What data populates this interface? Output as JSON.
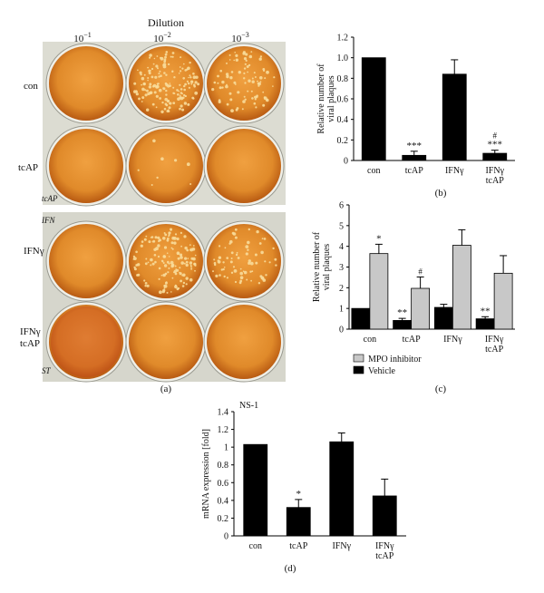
{
  "panel_a": {
    "title": "Dilution",
    "dilutions": [
      {
        "base": "10",
        "exp": "−1"
      },
      {
        "base": "10",
        "exp": "−2"
      },
      {
        "base": "10",
        "exp": "−3"
      }
    ],
    "row_labels": [
      "con",
      "tcAP",
      "IFNγ",
      "IFNγ tcAP"
    ],
    "plate_marks": [
      "tcAP",
      "IFN",
      "ST"
    ],
    "plaque_density": [
      [
        0.0,
        1.0,
        0.55
      ],
      [
        0.0,
        0.05,
        0.0
      ],
      [
        0.0,
        0.9,
        0.45
      ],
      [
        0.0,
        0.0,
        0.0
      ]
    ],
    "caption": "(a)"
  },
  "chart_data": [
    {
      "type": "bar",
      "panel": "(b)",
      "categories": [
        "con",
        "tcAP",
        "IFNγ",
        "IFNγ tcAP"
      ],
      "series": [
        {
          "values": [
            1.0,
            0.05,
            0.84,
            0.07
          ],
          "errors": [
            0,
            0.04,
            0.14,
            0.03
          ],
          "color": "#000000"
        }
      ],
      "ylabel": "Relative number of viral plaques",
      "ylim": [
        0,
        1.2
      ],
      "yticks": [
        "0",
        "0.2",
        "0.4",
        "0.6",
        "0.8",
        "1.0",
        "1.2"
      ],
      "annotations": [
        {
          "category": 1,
          "text": "***"
        },
        {
          "category": 3,
          "text": "***"
        },
        {
          "category": 3,
          "text": "#"
        }
      ]
    },
    {
      "type": "bar",
      "panel": "(c)",
      "categories": [
        "con",
        "tcAP",
        "IFNγ",
        "IFNγ tcAP"
      ],
      "series": [
        {
          "name": "Vehicle",
          "values": [
            1.0,
            0.42,
            1.05,
            0.5
          ],
          "errors": [
            0,
            0.1,
            0.15,
            0.1
          ],
          "color": "#000000"
        },
        {
          "name": "MPO inhibitor",
          "values": [
            3.65,
            1.97,
            4.05,
            2.7
          ],
          "errors": [
            0.45,
            0.55,
            0.75,
            0.85
          ],
          "color": "#c8c8c8"
        }
      ],
      "legend": [
        "MPO inhibitor",
        "Vehicle"
      ],
      "legend_position": "bottom",
      "ylabel": "Relative number of viral plaques",
      "ylim": [
        0,
        6
      ],
      "yticks": [
        "0",
        "1",
        "2",
        "3",
        "4",
        "5",
        "6"
      ],
      "annotations": [
        {
          "category": 0,
          "series": 1,
          "text": "*"
        },
        {
          "category": 1,
          "series": 0,
          "text": "**"
        },
        {
          "category": 1,
          "series": 1,
          "text": "#"
        },
        {
          "category": 3,
          "series": 0,
          "text": "**"
        }
      ]
    },
    {
      "type": "bar",
      "panel": "(d)",
      "title": "NS-1",
      "categories": [
        "con",
        "tcAP",
        "IFNγ",
        "IFNγ tcAP"
      ],
      "series": [
        {
          "values": [
            1.03,
            0.32,
            1.06,
            0.45
          ],
          "errors": [
            0,
            0.09,
            0.1,
            0.19
          ],
          "color": "#000000"
        }
      ],
      "ylabel": "mRNA expression [fold]",
      "ylim": [
        0,
        1.4
      ],
      "yticks": [
        "0",
        "0.2",
        "0.4",
        "0.6",
        "0.8",
        "1",
        "1.2",
        "1.4"
      ],
      "annotations": [
        {
          "category": 1,
          "text": "*"
        }
      ]
    }
  ]
}
